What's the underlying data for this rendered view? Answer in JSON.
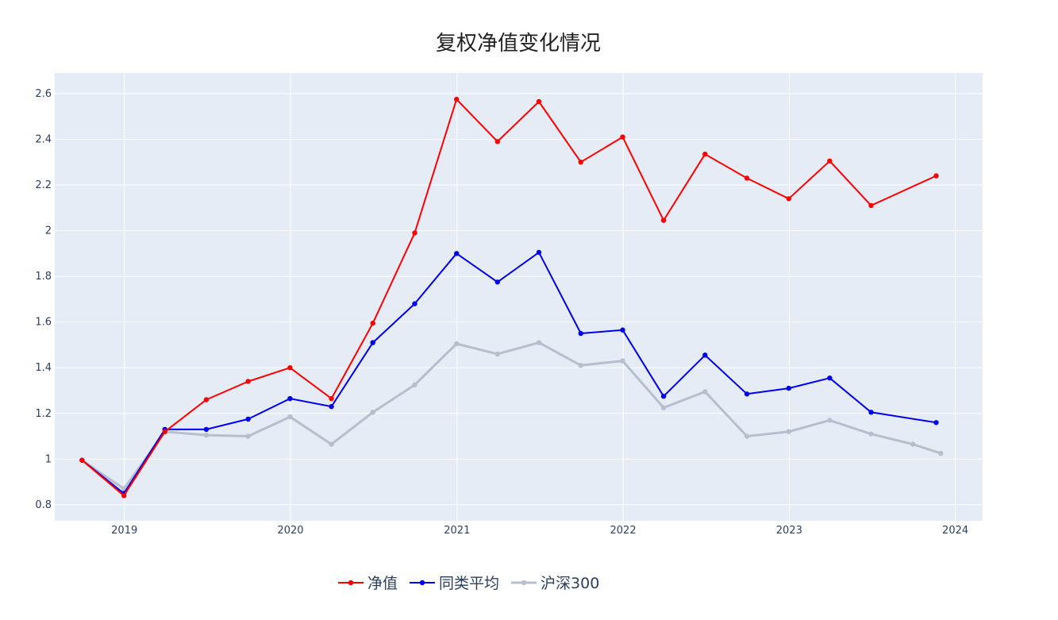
{
  "chart_data": {
    "type": "line",
    "title": "复权净值变化情况",
    "xlabel": "",
    "ylabel": "",
    "grid": true,
    "legend_position": "bottom-center",
    "plot_background": "#e5ecf6",
    "x_ticks": [
      "2019",
      "2020",
      "2021",
      "2022",
      "2023",
      "2024"
    ],
    "y_ticks": [
      "0.8",
      "1",
      "1.2",
      "1.4",
      "1.6",
      "1.8",
      "2",
      "2.2",
      "2.4",
      "2.6"
    ],
    "xlim": [
      "2018-08-01",
      "2024-03-01"
    ],
    "ylim": [
      0.73,
      2.69
    ],
    "series": [
      {
        "name": "净值",
        "color": "#ff0000",
        "line_width": 2,
        "x": [
          "2018-09-30",
          "2018-12-31",
          "2019-03-31",
          "2019-06-30",
          "2019-09-30",
          "2019-12-31",
          "2020-03-31",
          "2020-06-30",
          "2020-09-30",
          "2020-12-31",
          "2021-03-31",
          "2021-06-30",
          "2021-09-30",
          "2021-12-31",
          "2022-03-31",
          "2022-06-30",
          "2022-09-30",
          "2022-12-31",
          "2023-03-31",
          "2023-06-30",
          "2023-11-20"
        ],
        "y": [
          0.995,
          0.84,
          1.12,
          1.26,
          1.34,
          1.4,
          1.265,
          1.595,
          1.99,
          2.575,
          2.39,
          2.565,
          2.3,
          2.41,
          2.045,
          2.335,
          2.23,
          2.14,
          2.305,
          2.11,
          2.24
        ]
      },
      {
        "name": "同类平均",
        "color": "#0000ee",
        "line_width": 2,
        "x": [
          "2018-09-30",
          "2018-12-31",
          "2019-03-31",
          "2019-06-30",
          "2019-09-30",
          "2019-12-31",
          "2020-03-31",
          "2020-06-30",
          "2020-09-30",
          "2020-12-31",
          "2021-03-31",
          "2021-06-30",
          "2021-09-30",
          "2021-12-31",
          "2022-03-31",
          "2022-06-30",
          "2022-09-30",
          "2022-12-31",
          "2023-03-31",
          "2023-06-30",
          "2023-11-20"
        ],
        "y": [
          0.995,
          0.85,
          1.13,
          1.13,
          1.175,
          1.265,
          1.23,
          1.51,
          1.68,
          1.9,
          1.775,
          1.905,
          1.55,
          1.565,
          1.275,
          1.455,
          1.285,
          1.31,
          1.355,
          1.205,
          1.16
        ]
      },
      {
        "name": "沪深300",
        "color": "#b7bfcc",
        "line_width": 3,
        "x": [
          "2018-09-30",
          "2018-12-31",
          "2019-03-31",
          "2019-06-30",
          "2019-09-30",
          "2019-12-31",
          "2020-03-31",
          "2020-06-30",
          "2020-09-30",
          "2020-12-31",
          "2021-03-31",
          "2021-06-30",
          "2021-09-30",
          "2021-12-31",
          "2022-03-31",
          "2022-06-30",
          "2022-09-30",
          "2022-12-31",
          "2023-03-31",
          "2023-06-30",
          "2023-09-30",
          "2023-11-30"
        ],
        "y": [
          0.995,
          0.87,
          1.12,
          1.105,
          1.1,
          1.185,
          1.065,
          1.205,
          1.325,
          1.505,
          1.46,
          1.51,
          1.41,
          1.43,
          1.225,
          1.295,
          1.1,
          1.12,
          1.17,
          1.11,
          1.065,
          1.025
        ]
      }
    ]
  }
}
